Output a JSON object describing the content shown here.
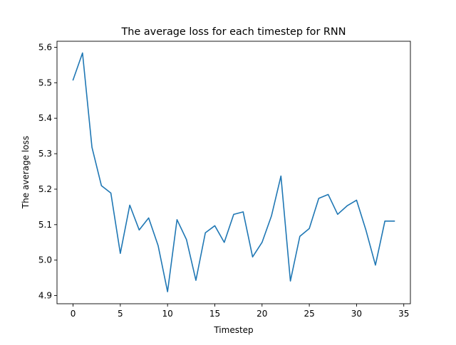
{
  "chart_data": {
    "type": "line",
    "title": "The average loss for each timestep for RNN",
    "xlabel": "Timestep",
    "ylabel": "The average loss",
    "xlim": [
      -1.7,
      35.7
    ],
    "ylim": [
      4.877,
      5.617
    ],
    "xticks": [
      0,
      5,
      10,
      15,
      20,
      25,
      30,
      35
    ],
    "yticks": [
      4.9,
      5.0,
      5.1,
      5.2,
      5.3,
      5.4,
      5.5,
      5.6
    ],
    "xtick_labels": [
      "0",
      "5",
      "10",
      "15",
      "20",
      "25",
      "30",
      "35"
    ],
    "ytick_labels": [
      "4.9",
      "5.0",
      "5.1",
      "5.2",
      "5.3",
      "5.4",
      "5.5",
      "5.6"
    ],
    "grid": false,
    "legend": "none",
    "series": [
      {
        "color": "#1f77b4",
        "x": [
          0,
          1,
          2,
          3,
          4,
          5,
          6,
          7,
          8,
          9,
          10,
          11,
          12,
          13,
          14,
          15,
          16,
          17,
          18,
          19,
          20,
          21,
          22,
          23,
          24,
          25,
          26,
          27,
          28,
          29,
          30,
          31,
          32,
          33,
          34
        ],
        "y": [
          5.508,
          5.584,
          5.318,
          5.21,
          5.189,
          5.019,
          5.155,
          5.085,
          5.119,
          5.041,
          4.911,
          5.114,
          5.058,
          4.943,
          5.077,
          5.097,
          5.05,
          5.129,
          5.136,
          5.009,
          5.05,
          5.125,
          5.237,
          4.941,
          5.067,
          5.089,
          5.174,
          5.185,
          5.129,
          5.153,
          5.169,
          5.084,
          4.986,
          5.11,
          5.11
        ]
      }
    ]
  }
}
